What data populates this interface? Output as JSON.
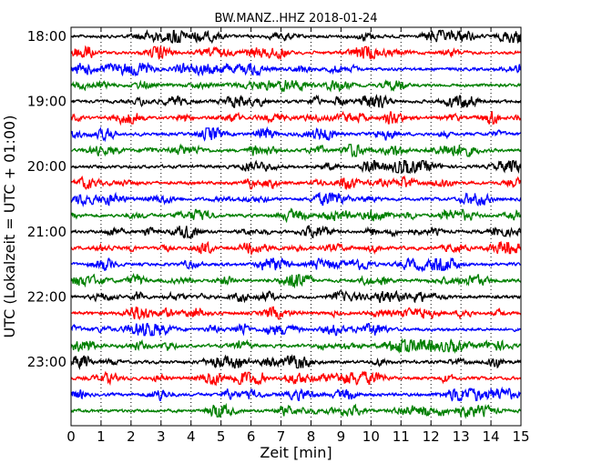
{
  "chart_data": {
    "type": "line",
    "title": "BW.MANZ..HHZ 2018-01-24",
    "xlabel": "Zeit  [min]",
    "ylabel": "UTC (Lokalzeit = UTC + 01:00)",
    "xlim": [
      0,
      15
    ],
    "xticks": [
      "0",
      "1",
      "2",
      "3",
      "4",
      "5",
      "6",
      "7",
      "8",
      "9",
      "10",
      "11",
      "12",
      "13",
      "14",
      "15"
    ],
    "yticks": [
      "18:00",
      "19:00",
      "20:00",
      "21:00",
      "22:00",
      "23:00"
    ],
    "trace_interval_min": 15,
    "first_trace": "18:00",
    "traces_count": 24,
    "colors": [
      "#000000",
      "#ff0000",
      "#0000ff",
      "#008000"
    ],
    "grid": "vertical dotted lines at each minute"
  }
}
